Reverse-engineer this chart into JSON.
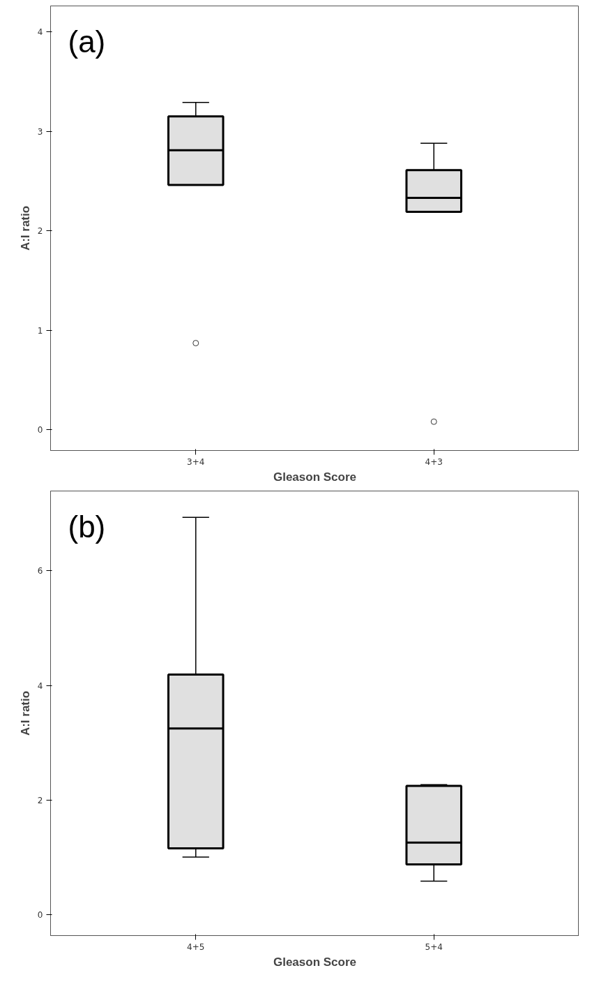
{
  "chart_data": [
    {
      "type": "box",
      "title": "(a)",
      "xlabel": "Gleason Score",
      "ylabel": "A:I ratio",
      "categories": [
        "3+4",
        "4+3"
      ],
      "color": "#e0e0e0",
      "boxes": [
        {
          "low": 2.46,
          "q1": 2.46,
          "median": 2.81,
          "q3": 3.15,
          "high": 3.29,
          "outliers": [
            0.87
          ]
        },
        {
          "low": 2.19,
          "q1": 2.19,
          "median": 2.33,
          "q3": 2.61,
          "high": 2.88,
          "outliers": [
            0.08
          ]
        }
      ],
      "ylim": [
        -0.21,
        4.26
      ],
      "yticks": [
        0,
        1,
        2,
        3,
        4
      ],
      "grid": false
    },
    {
      "type": "box",
      "title": "(b)",
      "xlabel": "Gleason Score",
      "ylabel": "A:I ratio",
      "categories": [
        "4+5",
        "5+4"
      ],
      "color": "#e0e0e0",
      "boxes": [
        {
          "low": 1.01,
          "q1": 1.16,
          "median": 3.25,
          "q3": 4.19,
          "high": 6.93
        },
        {
          "low": 0.59,
          "q1": 0.88,
          "median": 1.26,
          "q3": 2.25,
          "high": 2.27
        }
      ],
      "ylim": [
        -0.36,
        7.39
      ],
      "yticks": [
        0,
        2,
        4,
        6
      ],
      "grid": false
    }
  ]
}
